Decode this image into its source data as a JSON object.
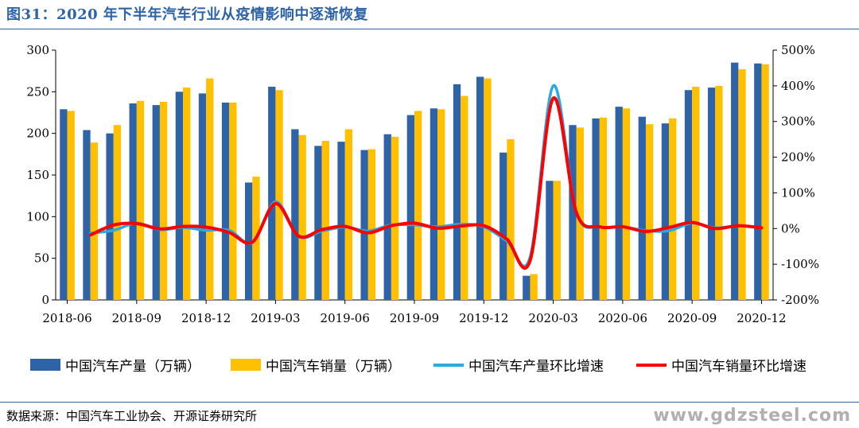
{
  "title": "图31：2020 年下半年汽车行业从疫情影响中逐渐恢复",
  "source": "数据来源：中国汽车工业协会、开源证券研究所",
  "watermark": "www.gdzsteel.com",
  "legend": {
    "production": "中国汽车产量（万辆）",
    "sales": "中国汽车销量（万辆）",
    "production_mom": "中国汽车产量环比增速",
    "sales_mom": "中国汽车销量环比增速"
  },
  "colors": {
    "production": "#2e63a8",
    "sales": "#ffc000",
    "production_mom": "#29abe2",
    "sales_mom": "#ff0000"
  },
  "chart_data": {
    "type": "bar",
    "categories": [
      "2018-06",
      "2018-07",
      "2018-08",
      "2018-09",
      "2018-10",
      "2018-11",
      "2018-12",
      "2019-01",
      "2019-02",
      "2019-03",
      "2019-04",
      "2019-05",
      "2019-06",
      "2019-07",
      "2019-08",
      "2019-09",
      "2019-10",
      "2019-11",
      "2019-12",
      "2020-01",
      "2020-02",
      "2020-03",
      "2020-04",
      "2020-05",
      "2020-06",
      "2020-07",
      "2020-08",
      "2020-09",
      "2020-10",
      "2020-11",
      "2020-12"
    ],
    "x_tick_labels": [
      "2018-06",
      "2018-09",
      "2018-12",
      "2019-03",
      "2019-06",
      "2019-09",
      "2019-12",
      "2020-03",
      "2020-06",
      "2020-09",
      "2020-12"
    ],
    "left_axis": {
      "ylim": [
        0,
        300
      ],
      "ticks": [
        0,
        50,
        100,
        150,
        200,
        250,
        300
      ]
    },
    "right_axis": {
      "ylim": [
        -200,
        500
      ],
      "ticks": [
        "-200%",
        "-100%",
        "0%",
        "100%",
        "200%",
        "300%",
        "400%",
        "500%"
      ]
    },
    "series": [
      {
        "name": "中国汽车产量（万辆）",
        "type": "bar",
        "axis": "left",
        "values": [
          229,
          204,
          200,
          236,
          234,
          250,
          248,
          237,
          141,
          256,
          205,
          185,
          190,
          180,
          199,
          222,
          230,
          259,
          268,
          177,
          29,
          143,
          210,
          218,
          232,
          220,
          212,
          252,
          255,
          285,
          284
        ]
      },
      {
        "name": "中国汽车销量（万辆）",
        "type": "bar",
        "axis": "left",
        "values": [
          227,
          189,
          210,
          239,
          238,
          255,
          266,
          237,
          148,
          252,
          198,
          191,
          205,
          181,
          196,
          227,
          229,
          245,
          266,
          193,
          31,
          143,
          207,
          219,
          230,
          211,
          218,
          256,
          257,
          277,
          283
        ]
      },
      {
        "name": "中国汽车产量环比增速",
        "type": "line",
        "axis": "right",
        "values": [
          null,
          -13,
          -5,
          15,
          -3,
          3,
          -5,
          -5,
          -40,
          75,
          -22,
          -7,
          4,
          -7,
          10,
          10,
          5,
          12,
          5,
          -35,
          -80,
          400,
          45,
          5,
          5,
          -6,
          -6,
          15,
          2,
          8,
          2
        ]
      },
      {
        "name": "中国汽车销量环比增速",
        "type": "line",
        "axis": "right",
        "values": [
          null,
          -18,
          10,
          14,
          -1,
          6,
          4,
          -11,
          -38,
          70,
          -21,
          -3,
          6,
          -12,
          8,
          15,
          1,
          7,
          8,
          -30,
          -90,
          365,
          45,
          5,
          5,
          -8,
          3,
          17,
          0,
          8,
          2
        ]
      }
    ]
  }
}
